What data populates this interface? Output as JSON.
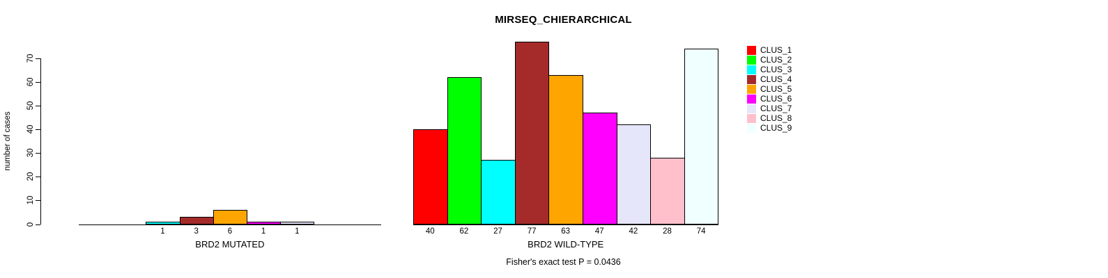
{
  "title": "MIRSEQ_CHIERARCHICAL",
  "footer": "Fisher's exact test P = 0.0436",
  "y_axis": {
    "label": "number of cases",
    "ticks": [
      "0",
      "10",
      "20",
      "30",
      "40",
      "50",
      "60",
      "70"
    ]
  },
  "groups": [
    {
      "label": "BRD2 MUTATED"
    },
    {
      "label": "BRD2 WILD-TYPE"
    }
  ],
  "legend": [
    {
      "label": "CLUS_1",
      "color": "#FF0000"
    },
    {
      "label": "CLUS_2",
      "color": "#00FF00"
    },
    {
      "label": "CLUS_3",
      "color": "#00FFFF"
    },
    {
      "label": "CLUS_4",
      "color": "#A52A2A"
    },
    {
      "label": "CLUS_5",
      "color": "#FFA500"
    },
    {
      "label": "CLUS_6",
      "color": "#FF00FF"
    },
    {
      "label": "CLUS_7",
      "color": "#E6E6FA"
    },
    {
      "label": "CLUS_8",
      "color": "#FFC0CB"
    },
    {
      "label": "CLUS_9",
      "color": "#F0FFFF"
    }
  ],
  "chart_data": {
    "type": "bar",
    "title": "MIRSEQ_CHIERARCHICAL",
    "xlabel": "",
    "ylabel": "number of cases",
    "ylim": [
      0,
      80
    ],
    "yticks": [
      0,
      10,
      20,
      30,
      40,
      50,
      60,
      70
    ],
    "grid": false,
    "legend_position": "top-right",
    "bar_borders": "black",
    "categories": [
      "CLUS_1",
      "CLUS_2",
      "CLUS_3",
      "CLUS_4",
      "CLUS_5",
      "CLUS_6",
      "CLUS_7",
      "CLUS_8",
      "CLUS_9"
    ],
    "colors": [
      "#FF0000",
      "#00FF00",
      "#00FFFF",
      "#A52A2A",
      "#FFA500",
      "#FF00FF",
      "#E6E6FA",
      "#FFC0CB",
      "#F0FFFF"
    ],
    "series": [
      {
        "name": "BRD2 MUTATED",
        "values": [
          0,
          0,
          1,
          3,
          6,
          1,
          1,
          0,
          0
        ]
      },
      {
        "name": "BRD2 WILD-TYPE",
        "values": [
          40,
          62,
          27,
          77,
          63,
          47,
          42,
          28,
          74
        ]
      }
    ],
    "bar_value_labels_shown_for_nonzero_only": true,
    "annotation": "Fisher's exact test P = 0.0436"
  }
}
